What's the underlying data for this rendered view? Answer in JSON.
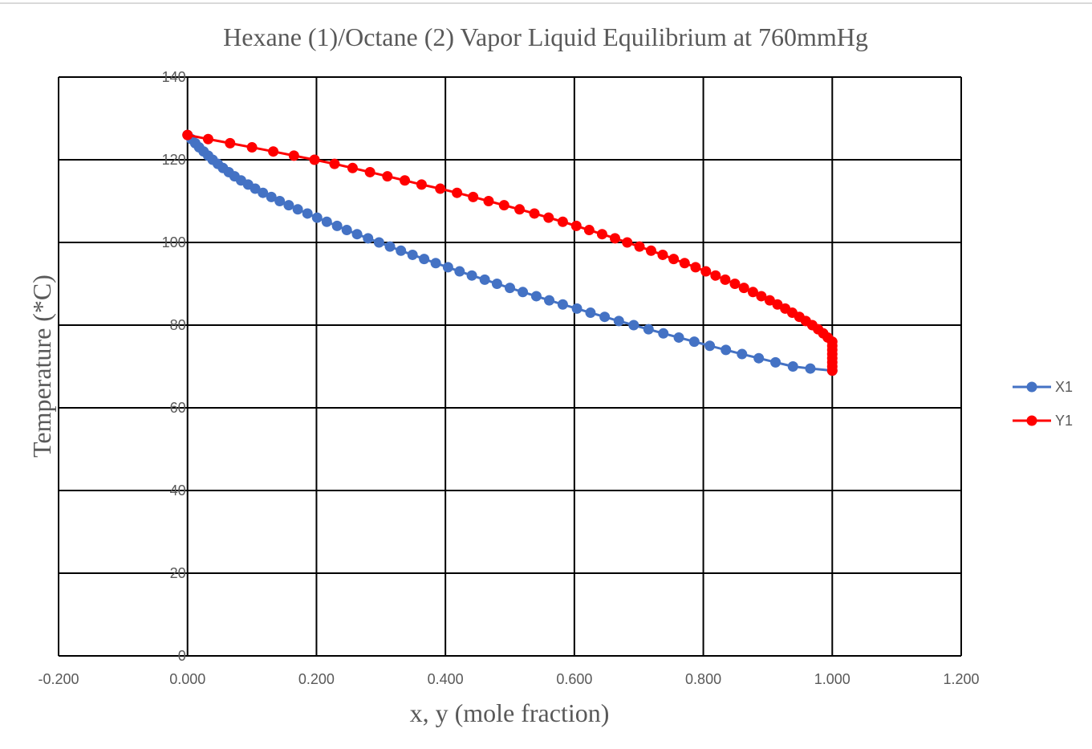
{
  "chart_data": {
    "type": "scatter",
    "title": "Hexane (1)/Octane (2) Vapor Liquid Equilibrium at 760mmHg",
    "xlabel": "x, y (mole fraction)",
    "ylabel": "Temperature (*C)",
    "xlim": [
      -0.2,
      1.2
    ],
    "ylim": [
      0,
      140
    ],
    "x_ticks": [
      "-0.200",
      "0.000",
      "0.200",
      "0.400",
      "0.600",
      "0.800",
      "1.000",
      "1.200"
    ],
    "y_ticks": [
      "0",
      "20",
      "40",
      "60",
      "80",
      "100",
      "120",
      "140"
    ],
    "grid": true,
    "legend_position": "right",
    "series": [
      {
        "name": "X1",
        "color": "#4472c4",
        "points": [
          [
            0.0,
            126
          ],
          [
            0.006,
            125
          ],
          [
            0.012,
            124
          ],
          [
            0.018,
            123
          ],
          [
            0.025,
            122
          ],
          [
            0.032,
            121
          ],
          [
            0.039,
            120
          ],
          [
            0.047,
            119
          ],
          [
            0.055,
            118
          ],
          [
            0.064,
            117
          ],
          [
            0.073,
            116
          ],
          [
            0.083,
            115
          ],
          [
            0.094,
            114
          ],
          [
            0.105,
            113
          ],
          [
            0.117,
            112
          ],
          [
            0.13,
            111
          ],
          [
            0.143,
            110
          ],
          [
            0.157,
            109
          ],
          [
            0.171,
            108
          ],
          [
            0.186,
            107
          ],
          [
            0.201,
            106
          ],
          [
            0.216,
            105
          ],
          [
            0.232,
            104
          ],
          [
            0.247,
            103
          ],
          [
            0.263,
            102
          ],
          [
            0.28,
            101
          ],
          [
            0.297,
            100
          ],
          [
            0.314,
            99
          ],
          [
            0.331,
            98
          ],
          [
            0.349,
            97
          ],
          [
            0.367,
            96
          ],
          [
            0.385,
            95
          ],
          [
            0.404,
            94
          ],
          [
            0.422,
            93
          ],
          [
            0.441,
            92
          ],
          [
            0.461,
            91
          ],
          [
            0.48,
            90
          ],
          [
            0.5,
            89
          ],
          [
            0.52,
            88
          ],
          [
            0.541,
            87
          ],
          [
            0.561,
            86
          ],
          [
            0.582,
            85
          ],
          [
            0.604,
            84
          ],
          [
            0.625,
            83
          ],
          [
            0.647,
            82
          ],
          [
            0.669,
            81
          ],
          [
            0.692,
            80
          ],
          [
            0.715,
            79
          ],
          [
            0.738,
            78
          ],
          [
            0.762,
            77
          ],
          [
            0.786,
            76
          ],
          [
            0.81,
            75
          ],
          [
            0.835,
            74
          ],
          [
            0.86,
            73
          ],
          [
            0.886,
            72
          ],
          [
            0.912,
            71
          ],
          [
            0.939,
            70
          ],
          [
            0.966,
            69.5
          ],
          [
            1.0,
            69
          ]
        ]
      },
      {
        "name": "Y1",
        "color": "#ff0000",
        "points": [
          [
            0.0,
            126
          ],
          [
            0.032,
            125
          ],
          [
            0.066,
            124
          ],
          [
            0.1,
            123
          ],
          [
            0.133,
            122
          ],
          [
            0.165,
            121
          ],
          [
            0.197,
            120
          ],
          [
            0.228,
            119
          ],
          [
            0.256,
            118
          ],
          [
            0.283,
            117
          ],
          [
            0.31,
            116
          ],
          [
            0.337,
            115
          ],
          [
            0.363,
            114
          ],
          [
            0.392,
            113
          ],
          [
            0.418,
            112
          ],
          [
            0.443,
            111
          ],
          [
            0.467,
            110
          ],
          [
            0.491,
            109
          ],
          [
            0.515,
            108
          ],
          [
            0.538,
            107
          ],
          [
            0.56,
            106
          ],
          [
            0.582,
            105
          ],
          [
            0.603,
            104
          ],
          [
            0.623,
            103
          ],
          [
            0.643,
            102
          ],
          [
            0.663,
            101
          ],
          [
            0.682,
            100
          ],
          [
            0.701,
            99
          ],
          [
            0.719,
            98
          ],
          [
            0.737,
            97
          ],
          [
            0.754,
            96
          ],
          [
            0.771,
            95
          ],
          [
            0.788,
            94
          ],
          [
            0.804,
            93
          ],
          [
            0.819,
            92
          ],
          [
            0.834,
            91
          ],
          [
            0.849,
            90
          ],
          [
            0.863,
            89
          ],
          [
            0.877,
            88
          ],
          [
            0.89,
            87
          ],
          [
            0.903,
            86
          ],
          [
            0.915,
            85
          ],
          [
            0.927,
            84
          ],
          [
            0.938,
            83
          ],
          [
            0.949,
            82
          ],
          [
            0.959,
            81
          ],
          [
            0.969,
            80
          ],
          [
            0.978,
            79
          ],
          [
            0.986,
            78
          ],
          [
            0.993,
            77
          ],
          [
            1.0,
            76
          ],
          [
            1.0,
            75
          ],
          [
            1.0,
            74
          ],
          [
            1.0,
            73
          ],
          [
            1.0,
            72
          ],
          [
            1.0,
            71
          ],
          [
            1.0,
            70
          ],
          [
            1.0,
            69
          ]
        ]
      }
    ]
  }
}
